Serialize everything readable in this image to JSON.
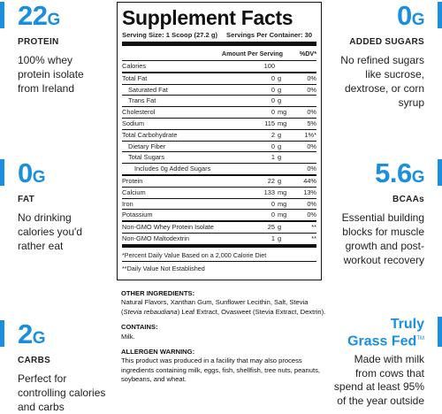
{
  "left": [
    {
      "value": "22",
      "unit": "G",
      "label": "PROTEIN",
      "desc": [
        "100% whey",
        "protein isolate",
        "from Ireland"
      ]
    },
    {
      "value": "0",
      "unit": "G",
      "label": "FAT",
      "desc": [
        "No drinking",
        "calories you'd",
        "rather eat"
      ]
    },
    {
      "value": "2",
      "unit": "G",
      "label": "CARBS",
      "desc": [
        "Perfect for",
        "controlling calories",
        "and carbs"
      ]
    }
  ],
  "right": [
    {
      "value": "0",
      "unit": "G",
      "label": "ADDED SUGARS",
      "desc": [
        "No refined sugars",
        "like sucrose,",
        "dextrose, or corn",
        "syrup"
      ]
    },
    {
      "value": "5.6",
      "unit": "G",
      "label": "BCAAs",
      "desc": [
        "Essential building",
        "blocks for muscle",
        "growth and post-",
        "workout recovery"
      ]
    },
    {
      "title1": "Truly",
      "title2": "Grass Fed",
      "tm": "TM",
      "desc": [
        "Made with milk",
        "from cows that",
        "spend at least 95%",
        "of the year outside"
      ]
    }
  ],
  "facts": {
    "title": "Supplement Facts",
    "serving_size": "Serving Size: 1 Scoop (27.2 g)",
    "servings_per": "Servings Per Container: 30",
    "col_amount": "Amount Per Serving",
    "col_dv": "%DV*",
    "rows": [
      {
        "n": "Calories",
        "a": "100",
        "u": "",
        "d": ""
      },
      {
        "n": "Total Fat",
        "a": "0",
        "u": "g",
        "d": "0%"
      },
      {
        "n": "Saturated Fat",
        "a": "0",
        "u": "g",
        "d": "0%"
      },
      {
        "n": "Trans Fat",
        "a": "0",
        "u": "g",
        "d": ""
      },
      {
        "n": "Cholesterol",
        "a": "0",
        "u": "mg",
        "d": "0%"
      },
      {
        "n": "Sodium",
        "a": "115",
        "u": "mg",
        "d": "5%"
      },
      {
        "n": "Total Carbohydrate",
        "a": "2",
        "u": "g",
        "d": "1%*"
      },
      {
        "n": "Dietary Fiber",
        "a": "0",
        "u": "g",
        "d": "0%"
      },
      {
        "n": "Total Sugars",
        "a": "1",
        "u": "g",
        "d": ""
      },
      {
        "n": "Includes 0g Added Sugars",
        "a": "",
        "u": "",
        "d": "0%"
      },
      {
        "n": "Protein",
        "a": "22",
        "u": "g",
        "d": "44%"
      },
      {
        "n": "Calcium",
        "a": "133",
        "u": "mg",
        "d": "13%"
      },
      {
        "n": "Iron",
        "a": "0",
        "u": "mg",
        "d": "0%"
      },
      {
        "n": "Potassium",
        "a": "0",
        "u": "mg",
        "d": "0%"
      },
      {
        "n": "Non-GMO Whey Protein Isolate",
        "a": "25",
        "u": "g",
        "d": "**"
      },
      {
        "n": "Non-GMO Maltodextrin",
        "a": "1",
        "u": "g",
        "d": "**"
      }
    ],
    "foot1": "*Percent Daily Value Based on a 2,000 Calorie Diet",
    "foot2": "**Daily Value Not Established"
  },
  "ingredients": {
    "h1": "OTHER INGREDIENTS:",
    "t1a": "Natural Flavors, Xanthan Gum, Sunflower Lecithin, Salt, Stevia (",
    "t1b": "Stevia rebaudiana",
    "t1c": ") Leaf Extract, Ovasweet (Stevia Extract, Dextrin).",
    "h2": "CONTAINS:",
    "t2": "Milk.",
    "h3": "ALLERGEN WARNING:",
    "t3": "This product was produced in a facility that may also process ingredients containing milk, eggs, fish, shellfish, tree nuts, peanuts, soybeans, and wheat."
  }
}
